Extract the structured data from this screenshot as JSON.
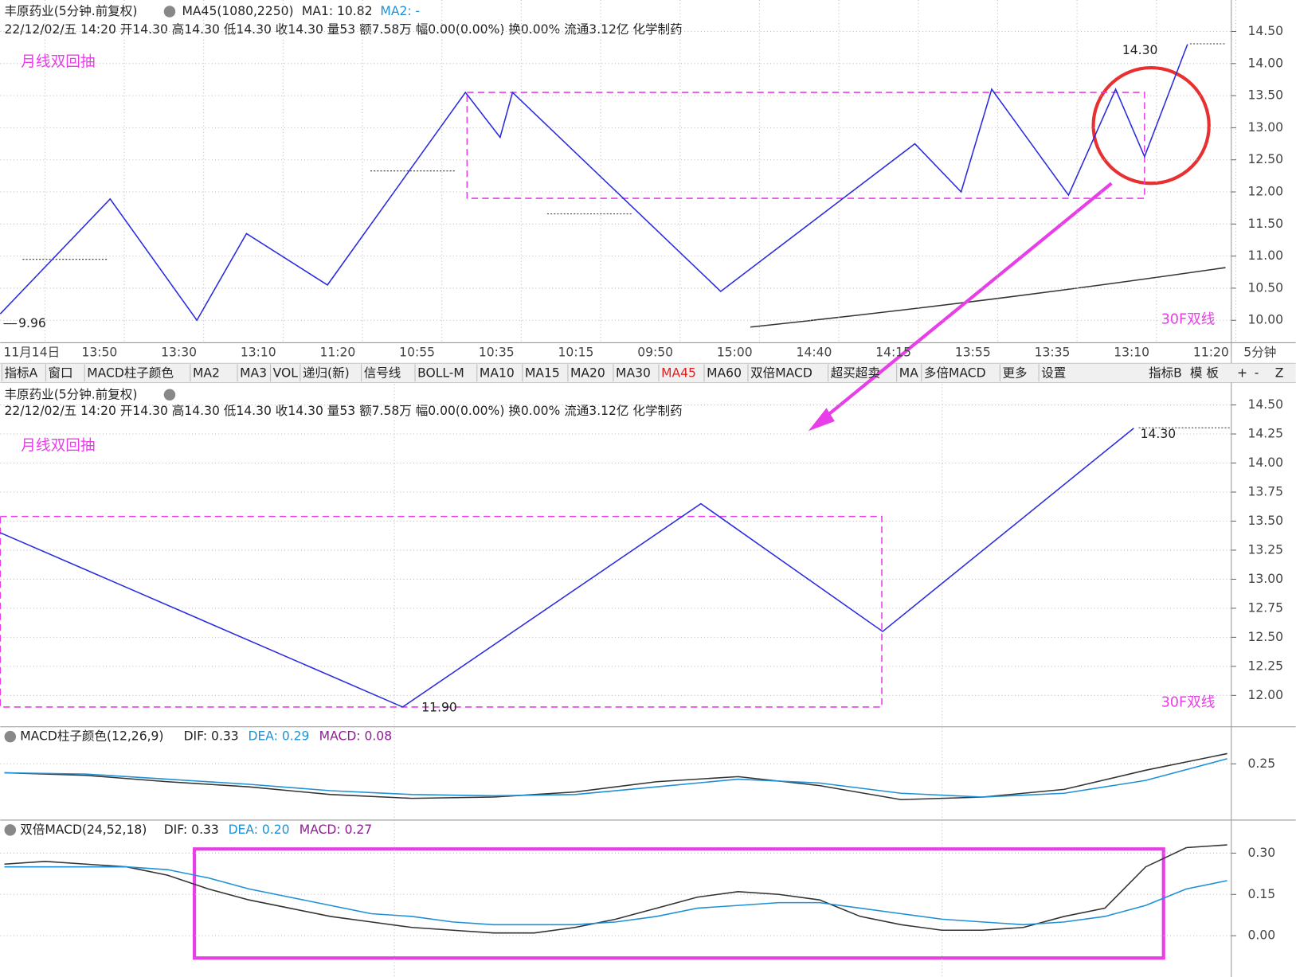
{
  "header_top": {
    "name": "丰原药业(5分钟.前复权)",
    "ma45": "MA45(1080,2250)",
    "ma1": "MA1: 10.82",
    "ma2": "MA2: -",
    "info": "22/12/02/五 14:20 开14.30 高14.30 低14.30 收14.30 量53 额7.58万 幅0.00(0.00%) 换0.00% 流通3.12亿 化学制药"
  },
  "header_lower": {
    "name": "丰原药业(5分钟.前复权)",
    "info": "22/12/02/五 14:20 开14.30 高14.30 低14.30 收14.30 量53 额7.58万 幅0.00(0.00%) 换0.00% 流通3.12亿 化学制药"
  },
  "toolbar": {
    "left": [
      "指标A",
      "窗口",
      "MACD柱子颜色",
      "MA2",
      "MA3",
      "VOL",
      "递归(新)",
      "信号线",
      "BOLL-M",
      "MA10",
      "MA15",
      "MA20",
      "MA30",
      "MA45",
      "MA60",
      "双倍MACD",
      "超买超卖",
      "MA",
      "多倍MACD",
      "更多",
      "设置"
    ],
    "right": [
      "指标B",
      "模 板",
      "+",
      "-",
      "Z"
    ],
    "active": "MA45"
  },
  "chart_data": [
    {
      "type": "candlestick",
      "ylim": [
        9.65,
        14.99
      ],
      "yticks": [
        {
          "value": 14.5,
          "label": "14.50"
        },
        {
          "value": 14,
          "label": "14.00"
        },
        {
          "value": 13.5,
          "label": "13.50"
        },
        {
          "value": 13,
          "label": "13.00"
        },
        {
          "value": 12.5,
          "label": "12.50"
        },
        {
          "value": 12,
          "label": "12.00"
        },
        {
          "value": 11.5,
          "label": "11.50"
        },
        {
          "value": 11,
          "label": "11.00"
        },
        {
          "value": 10.5,
          "label": "10.50"
        },
        {
          "value": 10,
          "label": "10.00"
        }
      ],
      "categories": [
        "11月14日",
        "13:50",
        "13:30",
        "13:10",
        "11:20",
        "10:55",
        "10:35",
        "10:15",
        "09:50",
        "15:00",
        "14:40",
        "14:15",
        "13:55",
        "13:35",
        "13:10",
        "11:20"
      ],
      "period": "5分钟",
      "zigzag": {
        "color": "#2a2ae0",
        "values": [
          10.1,
          11.89,
          10.0,
          11.35,
          10.55,
          13.55,
          12.85,
          13.55,
          10.45,
          12.75,
          12.0,
          13.6,
          11.95,
          13.6,
          12.55,
          14.3
        ]
      },
      "box": {
        "top": 13.55,
        "bottom": 11.9,
        "color": "#e83ee8"
      },
      "annotations": {
        "title": "月线双回抽",
        "note": "30F双线",
        "high": "14.30",
        "low": "9.96"
      }
    },
    {
      "type": "candlestick",
      "ylim": [
        11.73,
        14.68
      ],
      "yticks": [
        {
          "value": 14.5,
          "label": "14.50"
        },
        {
          "value": 14.25,
          "label": "14.25"
        },
        {
          "value": 14,
          "label": "14.00"
        },
        {
          "value": 13.75,
          "label": "13.75"
        },
        {
          "value": 13.5,
          "label": "13.50"
        },
        {
          "value": 13.25,
          "label": "13.25"
        },
        {
          "value": 13,
          "label": "13.00"
        },
        {
          "value": 12.75,
          "label": "12.75"
        },
        {
          "value": 12.5,
          "label": "12.50"
        },
        {
          "value": 12.25,
          "label": "12.25"
        },
        {
          "value": 12,
          "label": "12.00"
        }
      ],
      "zigzag": {
        "color": "#2a2ae0",
        "values": [
          13.4,
          11.9,
          13.65,
          12.55,
          14.3
        ]
      },
      "box": {
        "top": 13.54,
        "bottom": 11.9,
        "color": "#e83ee8"
      },
      "annotations": {
        "title": "月线双回抽",
        "note": "30F双线",
        "high": "14.30",
        "low": "11.90"
      }
    },
    {
      "type": "line",
      "title": "MACD柱子颜色(12,26,9)",
      "dif_label": "DIF: 0.33",
      "dea_label": "DEA: 0.29",
      "macd_label": "MACD: 0.08",
      "ylim": [
        -0.19,
        0.54
      ],
      "yticks": [
        0.25
      ],
      "series": [
        {
          "name": "DIF",
          "color": "#333333",
          "values": [
            0.18,
            0.16,
            0.11,
            0.07,
            0.01,
            -0.02,
            -0.01,
            0.03,
            0.11,
            0.15,
            0.08,
            -0.03,
            -0.01,
            0.05,
            0.2,
            0.33
          ]
        },
        {
          "name": "DEA",
          "color": "#1e90d6",
          "values": [
            0.18,
            0.17,
            0.13,
            0.09,
            0.04,
            0.01,
            0.0,
            0.01,
            0.07,
            0.13,
            0.1,
            0.02,
            -0.01,
            0.02,
            0.12,
            0.29
          ]
        }
      ]
    },
    {
      "type": "line",
      "title": "双倍MACD(24,52,18)",
      "dif_label": "DIF: 0.33",
      "dea_label": "DEA: 0.20",
      "macd_label": "MACD: 0.27",
      "ylim": [
        -0.15,
        0.42
      ],
      "yticks": [
        {
          "value": 0.3,
          "label": "0.30"
        },
        {
          "value": 0.15,
          "label": "0.15"
        },
        {
          "value": 0,
          "label": "0.00"
        }
      ],
      "series": [
        {
          "name": "DIF",
          "color": "#333333",
          "values": [
            0.26,
            0.27,
            0.26,
            0.25,
            0.22,
            0.17,
            0.13,
            0.1,
            0.07,
            0.05,
            0.03,
            0.02,
            0.01,
            0.01,
            0.03,
            0.06,
            0.1,
            0.14,
            0.16,
            0.15,
            0.13,
            0.07,
            0.04,
            0.02,
            0.02,
            0.03,
            0.07,
            0.1,
            0.25,
            0.32,
            0.33
          ]
        },
        {
          "name": "DEA",
          "color": "#1e90d6",
          "values": [
            0.25,
            0.25,
            0.25,
            0.25,
            0.24,
            0.21,
            0.17,
            0.14,
            0.11,
            0.08,
            0.07,
            0.05,
            0.04,
            0.04,
            0.04,
            0.05,
            0.07,
            0.1,
            0.11,
            0.12,
            0.12,
            0.1,
            0.08,
            0.06,
            0.05,
            0.04,
            0.05,
            0.07,
            0.11,
            0.17,
            0.2
          ]
        }
      ]
    }
  ]
}
